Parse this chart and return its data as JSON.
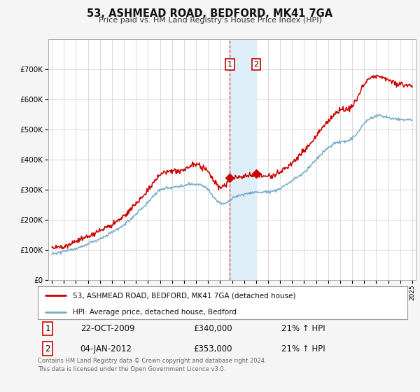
{
  "title": "53, ASHMEAD ROAD, BEDFORD, MK41 7GA",
  "subtitle": "Price paid vs. HM Land Registry's House Price Index (HPI)",
  "background_color": "#f5f5f5",
  "plot_bg_color": "#ffffff",
  "red_line_color": "#cc0000",
  "blue_line_color": "#7aabcc",
  "shaded_color": "#ddeef8",
  "vline_color": "#cc0000",
  "transaction1": {
    "date_num": 2009.81,
    "price": 340000,
    "label": "1",
    "date_str": "22-OCT-2009",
    "pct": "21%"
  },
  "transaction2": {
    "date_num": 2012.01,
    "price": 353000,
    "label": "2",
    "date_str": "04-JAN-2012",
    "pct": "21%"
  },
  "ylim": [
    0,
    800000
  ],
  "xlim": [
    1994.7,
    2025.3
  ],
  "yticks": [
    0,
    100000,
    200000,
    300000,
    400000,
    500000,
    600000,
    700000
  ],
  "footer_text": "Contains HM Land Registry data © Crown copyright and database right 2024.\nThis data is licensed under the Open Government Licence v3.0.",
  "legend_label1": "53, ASHMEAD ROAD, BEDFORD, MK41 7GA (detached house)",
  "legend_label2": "HPI: Average price, detached house, Bedford",
  "box_border_color": "#cc0000",
  "red_years": [
    1995,
    1996,
    1997,
    1998,
    1999,
    2000,
    2001,
    2002,
    2003,
    2004,
    2005,
    2006,
    2007,
    2008,
    2009,
    2010,
    2011,
    2012,
    2013,
    2014,
    2015,
    2016,
    2017,
    2018,
    2019,
    2020,
    2021,
    2022,
    2023,
    2024,
    2025
  ],
  "red_vals": [
    110000,
    115000,
    130000,
    145000,
    165000,
    185000,
    215000,
    255000,
    300000,
    350000,
    360000,
    370000,
    385000,
    360000,
    310000,
    335000,
    345000,
    350000,
    345000,
    360000,
    390000,
    430000,
    480000,
    530000,
    565000,
    580000,
    650000,
    680000,
    665000,
    650000,
    645000
  ],
  "blue_years": [
    1995,
    1996,
    1997,
    1998,
    1999,
    2000,
    2001,
    2002,
    2003,
    2004,
    2005,
    2006,
    2007,
    2008,
    2009,
    2010,
    2011,
    2012,
    2013,
    2014,
    2015,
    2016,
    2017,
    2018,
    2019,
    2020,
    2021,
    2022,
    2023,
    2024,
    2025
  ],
  "blue_vals": [
    90000,
    95000,
    105000,
    120000,
    138000,
    158000,
    185000,
    220000,
    258000,
    300000,
    308000,
    315000,
    320000,
    300000,
    255000,
    270000,
    285000,
    292000,
    292000,
    305000,
    330000,
    360000,
    400000,
    440000,
    460000,
    470000,
    520000,
    545000,
    540000,
    535000,
    530000
  ]
}
